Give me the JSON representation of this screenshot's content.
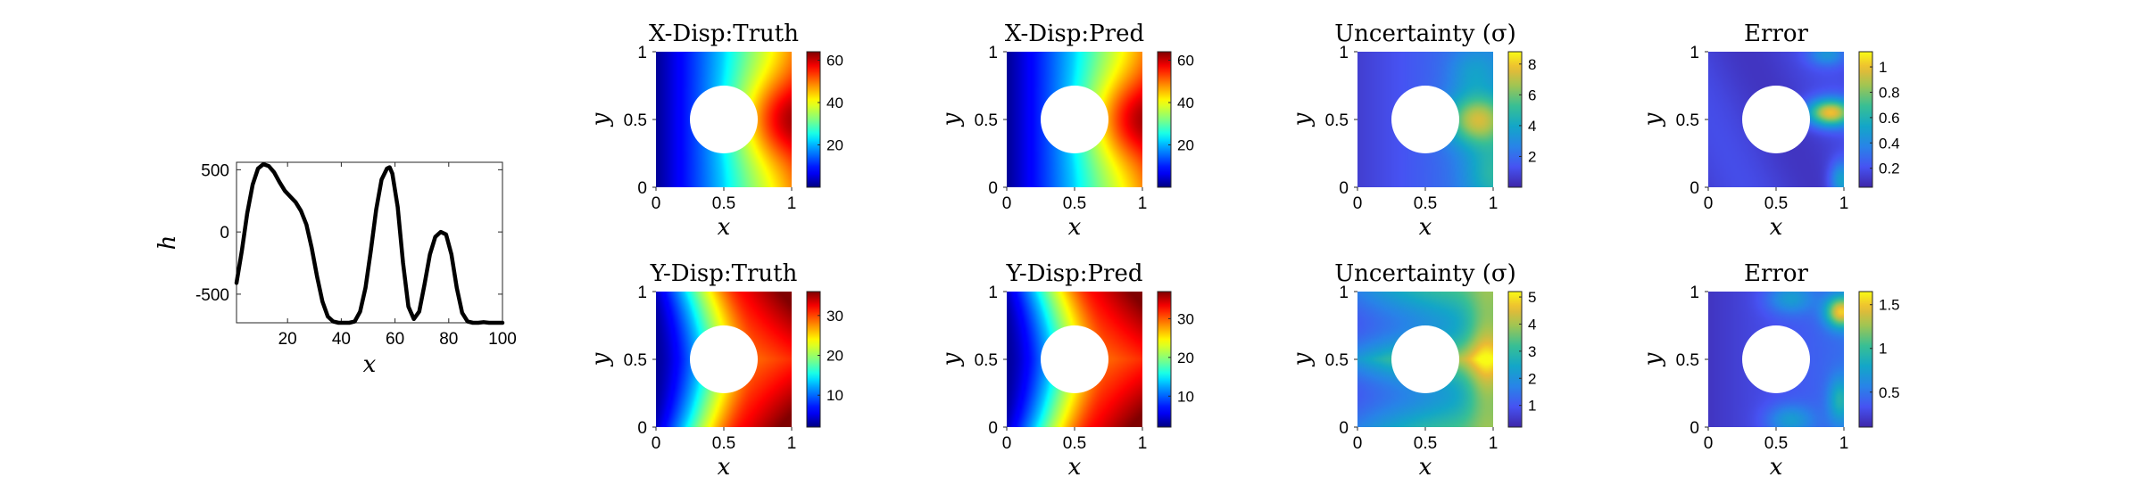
{
  "chart_data": [
    {
      "type": "line",
      "title": "",
      "xlabel": "x",
      "ylabel": "h",
      "xlim": [
        1,
        100
      ],
      "ylim": [
        -730,
        560
      ],
      "xticks": [
        20,
        40,
        60,
        80,
        100
      ],
      "yticks": [
        -500,
        0,
        500
      ],
      "ytick_labels": [
        "-500",
        "0",
        "500"
      ],
      "grid": false,
      "series": [
        {
          "x": [
            1,
            3,
            5,
            7,
            9,
            11,
            13,
            15,
            17,
            19,
            21,
            23,
            25,
            27,
            29,
            31,
            33,
            35,
            37,
            39,
            41,
            43,
            45,
            47,
            49,
            51,
            53,
            55,
            57,
            58,
            59,
            61,
            63,
            65,
            67,
            69,
            71,
            73,
            75,
            77,
            79,
            81,
            83,
            85,
            87,
            89,
            91,
            93,
            95,
            97,
            100
          ],
          "y": [
            -410,
            -150,
            150,
            380,
            510,
            545,
            530,
            480,
            400,
            330,
            285,
            240,
            170,
            60,
            -130,
            -360,
            -560,
            -680,
            -720,
            -730,
            -730,
            -730,
            -720,
            -640,
            -450,
            -150,
            180,
            420,
            510,
            520,
            470,
            200,
            -250,
            -600,
            -700,
            -640,
            -420,
            -180,
            -40,
            0,
            -20,
            -180,
            -450,
            -650,
            -720,
            -730,
            -730,
            -725,
            -730,
            -730,
            -730
          ]
        }
      ]
    },
    {
      "type": "heatmap",
      "title": "X-Disp:Truth",
      "xlabel": "x",
      "ylabel": "y",
      "xlim": [
        0,
        1
      ],
      "ylim": [
        0,
        1
      ],
      "xticks": [
        0,
        0.5,
        1
      ],
      "yticks": [
        0,
        0.5,
        1
      ],
      "hole": {
        "center": [
          0.5,
          0.5
        ],
        "radius": 0.25
      },
      "colormap": "jet",
      "clim": [
        0,
        64
      ],
      "colorbar_ticks": [
        20,
        40,
        60
      ]
    },
    {
      "type": "heatmap",
      "title": "X-Disp:Pred",
      "xlabel": "x",
      "ylabel": "y",
      "xlim": [
        0,
        1
      ],
      "ylim": [
        0,
        1
      ],
      "xticks": [
        0,
        0.5,
        1
      ],
      "yticks": [
        0,
        0.5,
        1
      ],
      "hole": {
        "center": [
          0.5,
          0.5
        ],
        "radius": 0.25
      },
      "colormap": "jet",
      "clim": [
        0,
        64
      ],
      "colorbar_ticks": [
        20,
        40,
        60
      ]
    },
    {
      "type": "heatmap",
      "title": "Uncertainty (σ)",
      "xlabel": "x",
      "ylabel": "y",
      "xlim": [
        0,
        1
      ],
      "ylim": [
        0,
        1
      ],
      "xticks": [
        0,
        0.5,
        1
      ],
      "yticks": [
        0,
        0.5,
        1
      ],
      "hole": {
        "center": [
          0.5,
          0.5
        ],
        "radius": 0.25
      },
      "colormap": "parula",
      "clim": [
        0,
        8.8
      ],
      "colorbar_ticks": [
        2,
        4,
        6,
        8
      ]
    },
    {
      "type": "heatmap",
      "title": "Error",
      "xlabel": "x",
      "ylabel": "y",
      "xlim": [
        0,
        1
      ],
      "ylim": [
        0,
        1
      ],
      "xticks": [
        0,
        0.5,
        1
      ],
      "yticks": [
        0,
        0.5,
        1
      ],
      "hole": {
        "center": [
          0.5,
          0.5
        ],
        "radius": 0.25
      },
      "colormap": "parula",
      "clim": [
        0.05,
        1.12
      ],
      "colorbar_ticks": [
        0.2,
        0.4,
        0.6,
        0.8,
        1
      ]
    },
    {
      "type": "heatmap",
      "title": "Y-Disp:Truth",
      "xlabel": "x",
      "ylabel": "y",
      "xlim": [
        0,
        1
      ],
      "ylim": [
        0,
        1
      ],
      "xticks": [
        0,
        0.5,
        1
      ],
      "yticks": [
        0,
        0.5,
        1
      ],
      "hole": {
        "center": [
          0.5,
          0.5
        ],
        "radius": 0.25
      },
      "colormap": "jet",
      "clim": [
        2,
        36
      ],
      "colorbar_ticks": [
        10,
        20,
        30
      ]
    },
    {
      "type": "heatmap",
      "title": "Y-Disp:Pred",
      "xlabel": "x",
      "ylabel": "y",
      "xlim": [
        0,
        1
      ],
      "ylim": [
        0,
        1
      ],
      "xticks": [
        0,
        0.5,
        1
      ],
      "yticks": [
        0,
        0.5,
        1
      ],
      "hole": {
        "center": [
          0.5,
          0.5
        ],
        "radius": 0.25
      },
      "colormap": "jet",
      "clim": [
        2,
        37
      ],
      "colorbar_ticks": [
        10,
        20,
        30
      ]
    },
    {
      "type": "heatmap",
      "title": "Uncertainty (σ)",
      "xlabel": "x",
      "ylabel": "y",
      "xlim": [
        0,
        1
      ],
      "ylim": [
        0,
        1
      ],
      "xticks": [
        0,
        0.5,
        1
      ],
      "yticks": [
        0,
        0.5,
        1
      ],
      "hole": {
        "center": [
          0.5,
          0.5
        ],
        "radius": 0.25
      },
      "colormap": "parula",
      "clim": [
        0.2,
        5.2
      ],
      "colorbar_ticks": [
        1,
        2,
        3,
        4,
        5
      ]
    },
    {
      "type": "heatmap",
      "title": "Error",
      "xlabel": "x",
      "ylabel": "y",
      "xlim": [
        0,
        1
      ],
      "ylim": [
        0,
        1
      ],
      "xticks": [
        0,
        0.5,
        1
      ],
      "yticks": [
        0,
        0.5,
        1
      ],
      "hole": {
        "center": [
          0.5,
          0.5
        ],
        "radius": 0.25
      },
      "colormap": "parula",
      "clim": [
        0.1,
        1.65
      ],
      "colorbar_ticks": [
        0.5,
        1,
        1.5
      ]
    }
  ],
  "colors": {
    "line": "#000000",
    "axes": "#262626",
    "background": "#ffffff"
  }
}
